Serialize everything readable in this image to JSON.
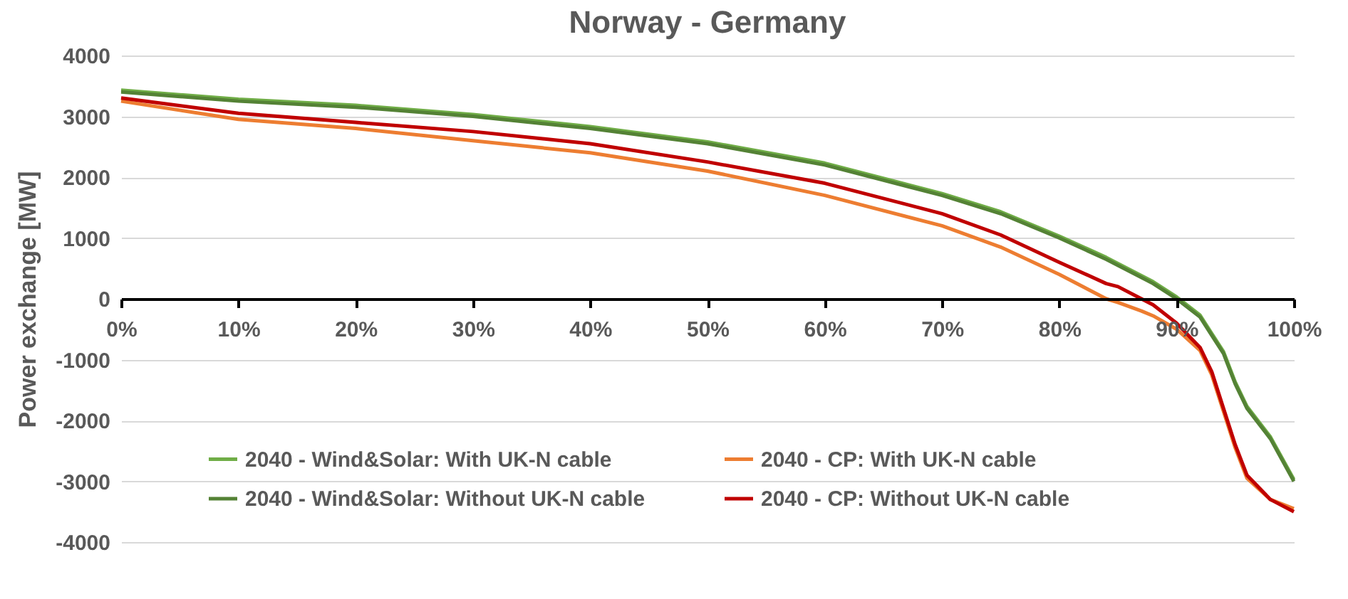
{
  "chart_data": {
    "type": "line",
    "title": "Norway - Germany",
    "ylabel": "Power exchange [MW]",
    "x": [
      0,
      10,
      20,
      30,
      40,
      50,
      60,
      70,
      75,
      80,
      84,
      85,
      87,
      88,
      90,
      92,
      93,
      94,
      95,
      96,
      98,
      100
    ],
    "series": [
      {
        "name": "2040 - Wind&Solar: With UK-N cable",
        "color": "#70ad47",
        "values": [
          3430,
          3280,
          3180,
          3030,
          2830,
          2580,
          2230,
          1730,
          1430,
          1030,
          680,
          580,
          380,
          280,
          30,
          -270,
          -570,
          -870,
          -1370,
          -1770,
          -2270,
          -2970
        ]
      },
      {
        "name": "2040 - Wind&Solar: Without UK-N cable",
        "color": "#548235",
        "values": [
          3400,
          3250,
          3150,
          3000,
          2800,
          2550,
          2200,
          1700,
          1400,
          1000,
          650,
          550,
          350,
          250,
          0,
          -300,
          -600,
          -900,
          -1400,
          -1800,
          -2300,
          -3000
        ]
      },
      {
        "name": "2040 - CP: With UK-N cable",
        "color": "#ed7d31",
        "values": [
          3250,
          2950,
          2800,
          2600,
          2400,
          2100,
          1700,
          1200,
          850,
          400,
          0,
          -60,
          -200,
          -280,
          -500,
          -850,
          -1250,
          -1850,
          -2450,
          -2950,
          -3300,
          -3450
        ]
      },
      {
        "name": "2040 - CP: Without UK-N cable",
        "color": "#c00000",
        "values": [
          3300,
          3050,
          2900,
          2750,
          2550,
          2250,
          1900,
          1400,
          1050,
          600,
          250,
          200,
          0,
          -100,
          -400,
          -800,
          -1200,
          -1800,
          -2400,
          -2900,
          -3300,
          -3500
        ]
      }
    ],
    "xlim": [
      0,
      100
    ],
    "xticks": [
      {
        "value": 0,
        "label": "0%"
      },
      {
        "value": 10,
        "label": "10%"
      },
      {
        "value": 20,
        "label": "20%"
      },
      {
        "value": 30,
        "label": "30%"
      },
      {
        "value": 40,
        "label": "40%"
      },
      {
        "value": 50,
        "label": "50%"
      },
      {
        "value": 60,
        "label": "60%"
      },
      {
        "value": 70,
        "label": "70%"
      },
      {
        "value": 80,
        "label": "80%"
      },
      {
        "value": 90,
        "label": "90%"
      },
      {
        "value": 100,
        "label": "100%"
      }
    ],
    "ylim": [
      -4000,
      4000
    ],
    "yticks": [
      -4000,
      -3000,
      -2000,
      -1000,
      0,
      1000,
      2000,
      3000,
      4000
    ],
    "grid": "y",
    "legend": "bottom",
    "marker": "none",
    "line_style": "solid"
  }
}
